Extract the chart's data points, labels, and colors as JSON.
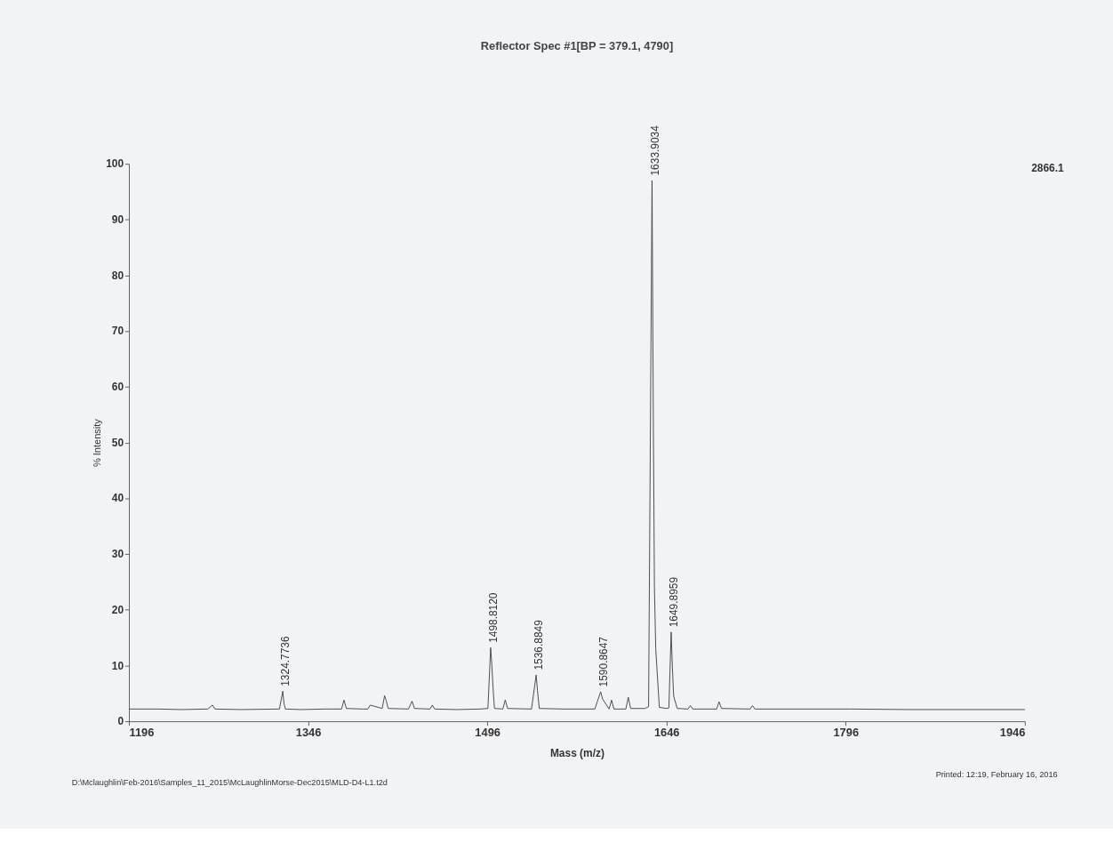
{
  "chart_data": {
    "type": "line",
    "title": "Reflector Spec #1[BP = 379.1, 4790]",
    "xlabel": "Mass (m/z)",
    "ylabel": "% Intensity",
    "series": [
      {
        "color": "#404040",
        "x": [
          1196,
          1220,
          1240,
          1262,
          1266,
          1268,
          1290,
          1322,
          1324.8,
          1325.8,
          1327,
          1340,
          1360,
          1374,
          1376,
          1378,
          1392,
          1396,
          1398,
          1408,
          1410,
          1411.5,
          1413,
          1430,
          1433,
          1435,
          1448,
          1450,
          1452,
          1470,
          1490,
          1496.5,
          1498.8,
          1499.8,
          1500.8,
          1502,
          1509,
          1511,
          1513,
          1533,
          1536.9,
          1538,
          1539.5,
          1560,
          1586,
          1590.9,
          1592.5,
          1598,
          1600,
          1602,
          1612,
          1614,
          1616,
          1628,
          1631,
          1633.9,
          1634.9,
          1635.9,
          1637,
          1640,
          1646,
          1648,
          1649.9,
          1650.9,
          1652,
          1655,
          1664,
          1666,
          1668,
          1688,
          1690,
          1692,
          1716,
          1718,
          1720,
          1760,
          1800,
          1850,
          1900,
          1946
        ],
        "values": [
          2.2,
          2.2,
          2.1,
          2.2,
          2.9,
          2.2,
          2.1,
          2.2,
          5.4,
          3.2,
          2.2,
          2.1,
          2.2,
          2.2,
          3.8,
          2.3,
          2.2,
          2.2,
          2.9,
          2.3,
          4.6,
          3.6,
          2.3,
          2.2,
          3.6,
          2.3,
          2.2,
          2.9,
          2.2,
          2.1,
          2.2,
          2.3,
          13.2,
          10,
          6,
          2.3,
          2.2,
          3.8,
          2.3,
          2.2,
          8.3,
          5.5,
          2.3,
          2.2,
          2.2,
          5.3,
          4,
          2.2,
          3.8,
          2.2,
          2.2,
          4.3,
          2.3,
          2.3,
          2.6,
          97,
          57,
          24,
          13,
          2.5,
          2.3,
          2.4,
          16,
          9.8,
          4.5,
          2.3,
          2.2,
          2.8,
          2.2,
          2.2,
          3.5,
          2.3,
          2.2,
          2.8,
          2.2,
          2.2,
          2.2,
          2.1,
          2.1,
          2.1
        ]
      }
    ],
    "xlim": [
      1196,
      1946
    ],
    "xticks": [
      1196,
      1346,
      1496,
      1646,
      1796,
      1946
    ],
    "ylim": [
      0,
      100
    ],
    "yticks": [
      0,
      10,
      20,
      30,
      40,
      50,
      60,
      70,
      80,
      90,
      100
    ],
    "grid": false,
    "annotations": [
      {
        "text": "1324.7736",
        "x": 1324.8,
        "y": 5.4
      },
      {
        "text": "1498.8120",
        "x": 1498.8,
        "y": 13.2
      },
      {
        "text": "1536.8849",
        "x": 1536.9,
        "y": 8.3
      },
      {
        "text": "1590.8647",
        "x": 1590.9,
        "y": 5.3
      },
      {
        "text": "1633.9034",
        "x": 1633.9,
        "y": 97
      },
      {
        "text": "1649.8959",
        "x": 1649.9,
        "y": 16
      },
      "2866.1",
      "D:\\Mclaughlin\\Feb-2016\\Samples_11_2015\\McLaughlinMorse-Dec2015\\MLD-D4-L1.t2d",
      "Printed: 12:19, February 16, 2016"
    ]
  }
}
